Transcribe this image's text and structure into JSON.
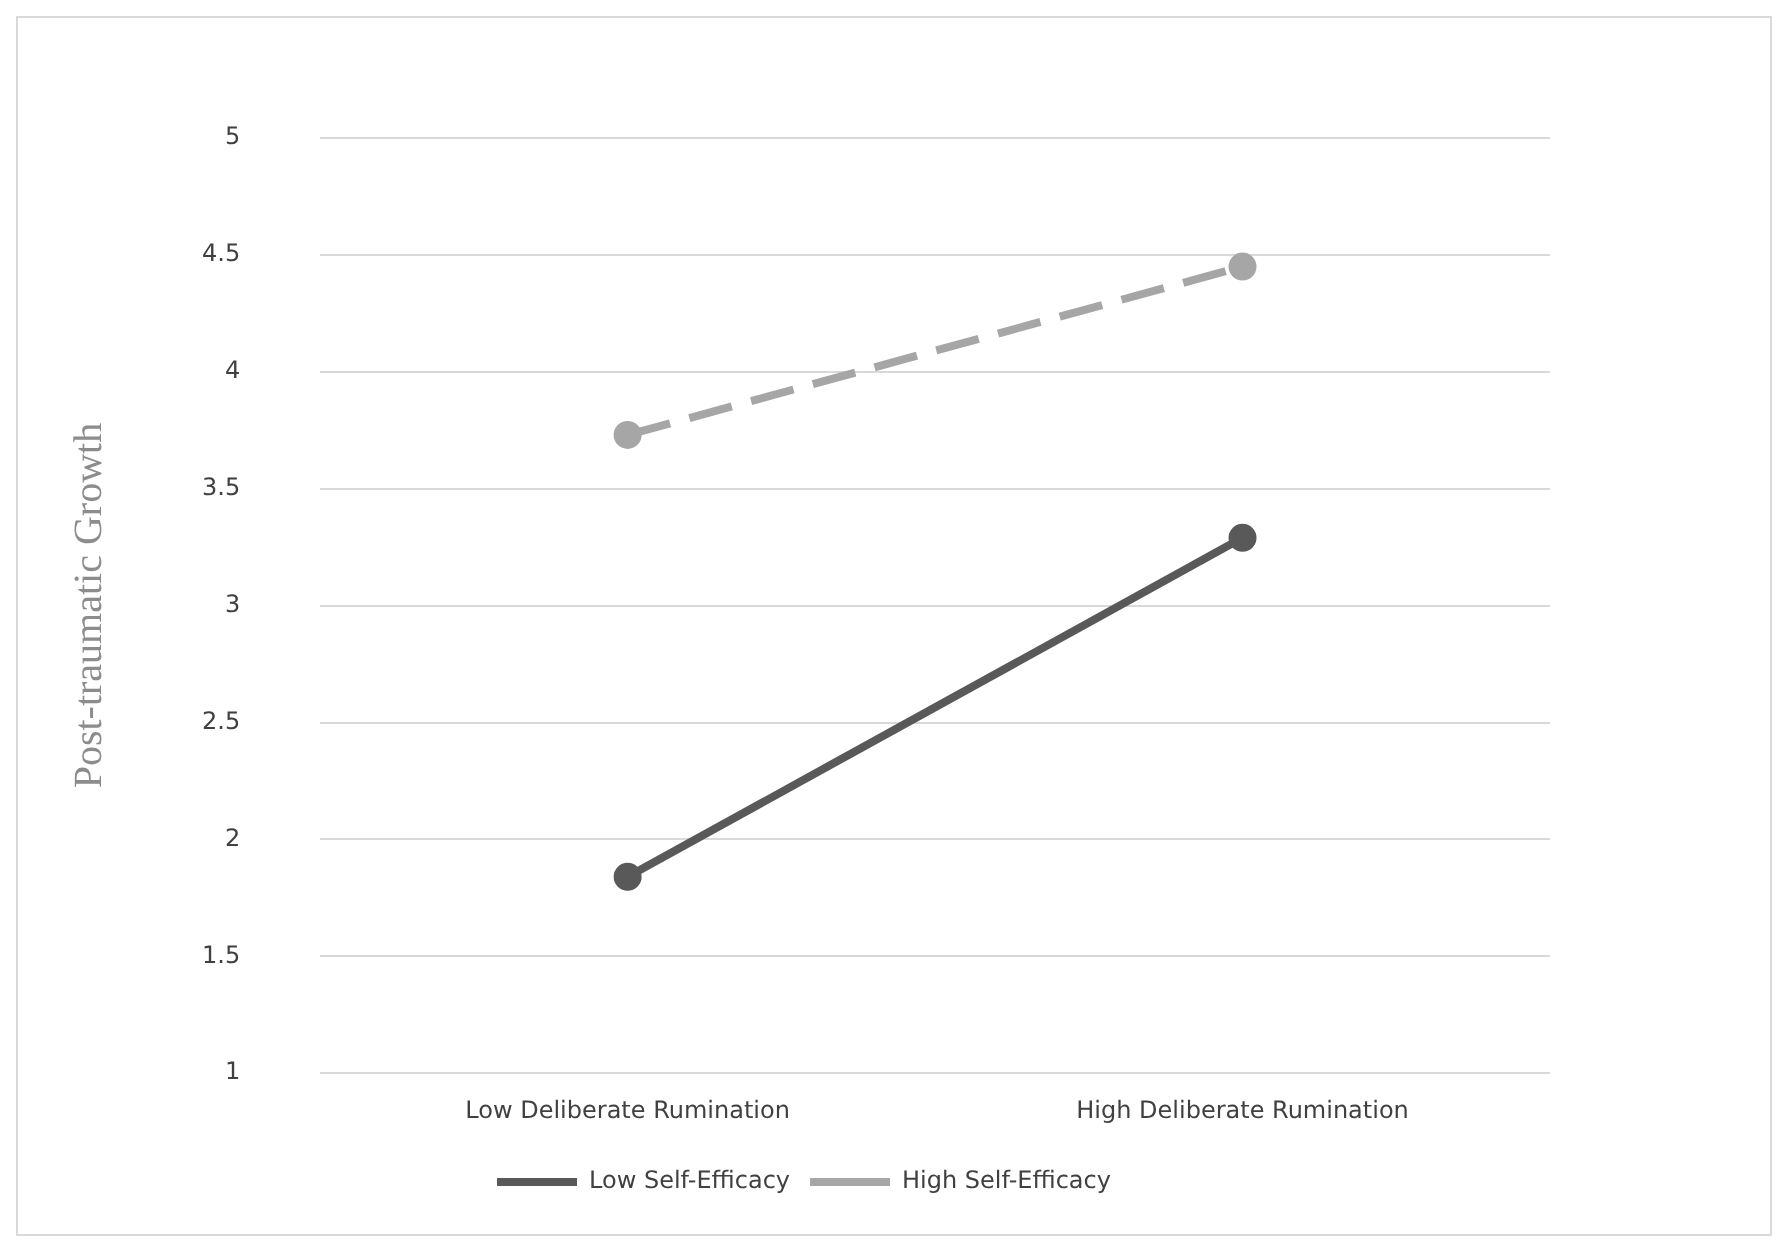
{
  "chart_data": {
    "type": "line",
    "ylabel": "Post-traumatic Growth",
    "categories": [
      "Low Deliberate Rumination",
      "High Deliberate Rumination"
    ],
    "series": [
      {
        "name": "Low Self-Efficacy",
        "color": "#595959",
        "values": [
          1.84,
          3.29
        ],
        "line_style": "solid"
      },
      {
        "name": "High Self-Efficacy",
        "color": "#a6a6a6",
        "values": [
          3.73,
          4.45
        ],
        "line_style": "dashed"
      }
    ],
    "ylim": [
      1,
      5
    ],
    "yticks": [
      1,
      1.5,
      2,
      2.5,
      3,
      3.5,
      4,
      4.5,
      5
    ],
    "grid": "y",
    "legend": "bottom",
    "marker": "circle"
  }
}
